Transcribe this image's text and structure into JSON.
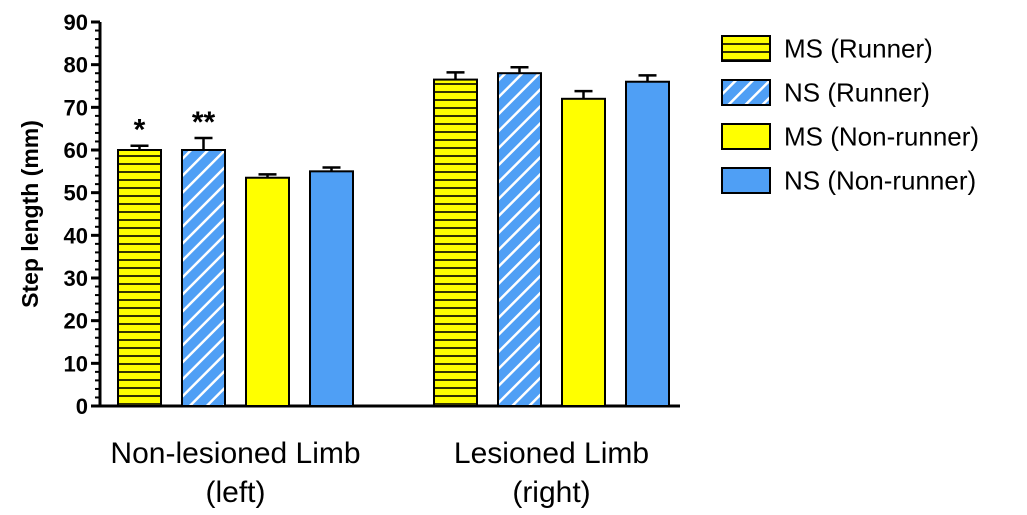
{
  "chart_data": {
    "type": "bar",
    "title": "",
    "ylabel": "Step length (mm)",
    "xlabel": "",
    "ylim": [
      0,
      90
    ],
    "yticks": [
      0,
      10,
      20,
      30,
      40,
      50,
      60,
      70,
      80,
      90
    ],
    "grid": false,
    "legend_position": "right",
    "categories": [
      {
        "line1": "Non-lesioned Limb",
        "line2": "(left)"
      },
      {
        "line1": "Lesioned Limb",
        "line2": "(right)"
      }
    ],
    "series": [
      {
        "name": "MS (Runner)",
        "fill": "#ffff00",
        "pattern": "horizontal-lines",
        "values": [
          60,
          76.5
        ],
        "errors": [
          1,
          1.7
        ],
        "annotations": [
          "*",
          ""
        ]
      },
      {
        "name": "NS (Runner)",
        "fill": "#4f9ff5",
        "pattern": "diagonal-stripes",
        "values": [
          60,
          78
        ],
        "errors": [
          2.8,
          1.4
        ],
        "annotations": [
          "**",
          ""
        ]
      },
      {
        "name": "MS (Non-runner)",
        "fill": "#ffff00",
        "pattern": "solid",
        "values": [
          53.5,
          72
        ],
        "errors": [
          0.8,
          1.8
        ],
        "annotations": [
          "",
          ""
        ]
      },
      {
        "name": "NS (Non-runner)",
        "fill": "#4f9ff5",
        "pattern": "solid",
        "values": [
          55,
          76
        ],
        "errors": [
          0.9,
          1.5
        ],
        "annotations": [
          "",
          ""
        ]
      }
    ]
  }
}
